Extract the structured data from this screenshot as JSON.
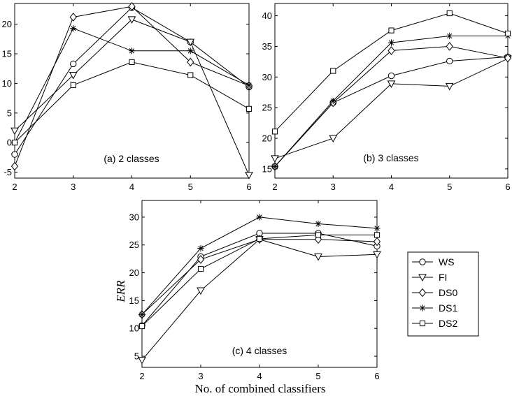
{
  "legend": {
    "entries": [
      {
        "name": "WS",
        "marker": "circle"
      },
      {
        "name": "FI",
        "marker": "triangle-down"
      },
      {
        "name": "DS0",
        "marker": "diamond"
      },
      {
        "name": "DS1",
        "marker": "star"
      },
      {
        "name": "DS2",
        "marker": "square"
      }
    ]
  },
  "xlabel": "No. of combined classifiers",
  "ylabel": "ERR",
  "chart_data": [
    {
      "type": "line",
      "label": "(a) 2 classes",
      "x": [
        2,
        3,
        4,
        5,
        6
      ],
      "xlim": [
        2,
        6
      ],
      "ylim": [
        -6,
        23.5
      ],
      "yticks": [
        -5,
        0,
        5,
        10,
        15,
        20
      ],
      "series": [
        {
          "name": "WS",
          "values": [
            -2,
            13.3,
            22.8,
            17,
            9.4
          ]
        },
        {
          "name": "FI",
          "values": [
            2,
            11.4,
            20.8,
            17,
            -5.5
          ]
        },
        {
          "name": "DS0",
          "values": [
            -4,
            21.2,
            23,
            13.6,
            9.6
          ]
        },
        {
          "name": "DS1",
          "values": [
            0,
            19.3,
            15.5,
            15.5,
            9.7
          ]
        },
        {
          "name": "DS2",
          "values": [
            0,
            9.7,
            13.6,
            11.4,
            5.7
          ]
        }
      ]
    },
    {
      "type": "line",
      "label": "(b) 3 classes",
      "x": [
        2,
        3,
        4,
        5,
        6
      ],
      "xlim": [
        2,
        6
      ],
      "ylim": [
        13.5,
        42
      ],
      "yticks": [
        15,
        20,
        25,
        30,
        35,
        40
      ],
      "series": [
        {
          "name": "WS",
          "values": [
            15.4,
            25.8,
            30.2,
            32.6,
            33.3
          ]
        },
        {
          "name": "FI",
          "values": [
            16.7,
            20,
            28.9,
            28.5,
            33
          ]
        },
        {
          "name": "DS0",
          "values": [
            15.4,
            25.8,
            34.3,
            35,
            33.1
          ]
        },
        {
          "name": "DS1",
          "values": [
            15.4,
            26.1,
            35.6,
            36.7,
            36.7
          ]
        },
        {
          "name": "DS2",
          "values": [
            21.1,
            31,
            37.6,
            40.4,
            37.1
          ]
        }
      ]
    },
    {
      "type": "line",
      "label": "(c) 4 classes",
      "x": [
        2,
        3,
        4,
        5,
        6
      ],
      "xlim": [
        2,
        6
      ],
      "ylim": [
        3,
        33
      ],
      "yticks": [
        5,
        10,
        15,
        20,
        25,
        30
      ],
      "series": [
        {
          "name": "WS",
          "values": [
            10.5,
            22.9,
            27.1,
            27.1,
            24.8
          ]
        },
        {
          "name": "FI",
          "values": [
            4.3,
            16.8,
            26,
            22.9,
            23.3
          ]
        },
        {
          "name": "DS0",
          "values": [
            12.5,
            22.4,
            26,
            26,
            25.6
          ]
        },
        {
          "name": "DS1",
          "values": [
            12.5,
            24.4,
            30,
            28.8,
            28
          ]
        },
        {
          "name": "DS2",
          "values": [
            10.4,
            20.7,
            26.1,
            26.8,
            26.8
          ]
        }
      ]
    }
  ]
}
